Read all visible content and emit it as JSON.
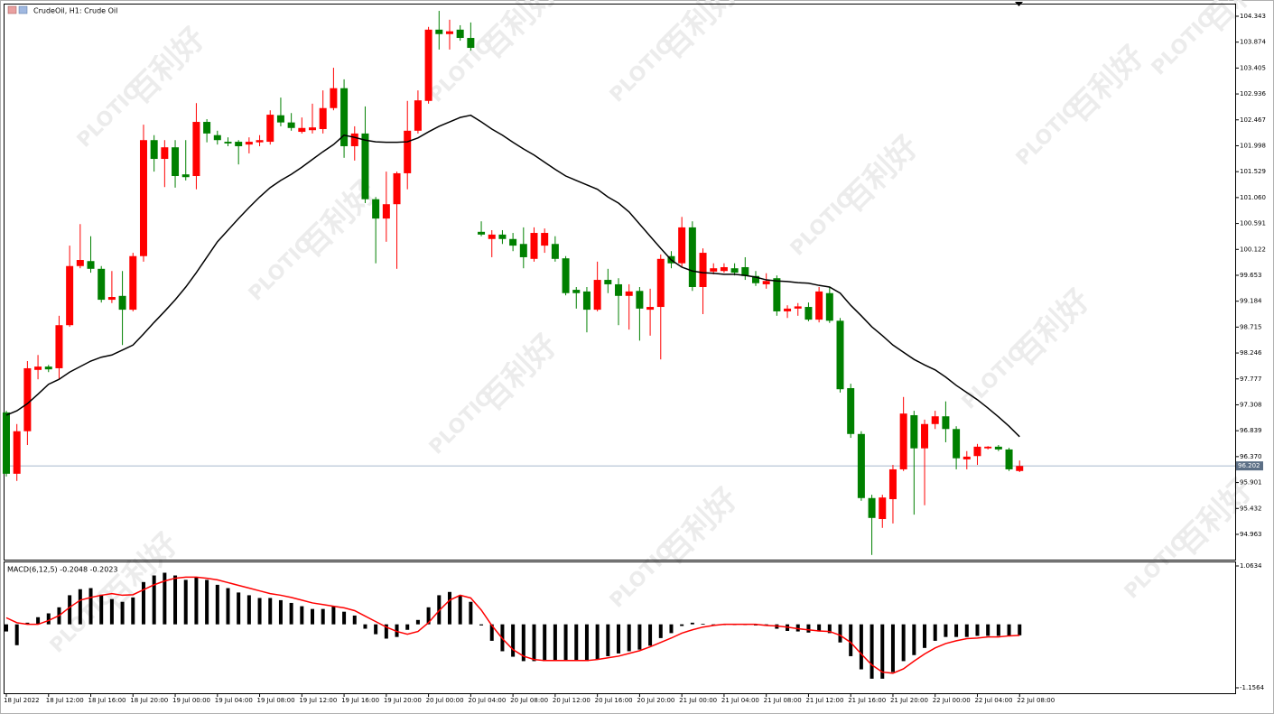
{
  "chart_data": [
    {
      "type": "candlestick",
      "title": "CrudeOil, H1: Crude Oil",
      "watermark": [
        "百利好",
        "PLOTIO"
      ],
      "categories": [
        "18 Jul 2022",
        null,
        null,
        null,
        "18 Jul 12:00",
        null,
        null,
        null,
        "18 Jul 16:00",
        null,
        null,
        null,
        "18 Jul 20:00",
        null,
        null,
        null,
        "19 Jul 00:00",
        null,
        null,
        null,
        "19 Jul 04:00",
        null,
        null,
        null,
        "19 Jul 08:00",
        null,
        null,
        null,
        "19 Jul 12:00",
        null,
        null,
        null,
        "19 Jul 16:00",
        null,
        null,
        null,
        "19 Jul 20:00",
        null,
        null,
        null,
        "20 Jul 00:00",
        null,
        null,
        null,
        "20 Jul 04:00",
        null,
        null,
        null,
        "20 Jul 08:00",
        null,
        null,
        null,
        "20 Jul 12:00",
        null,
        null,
        null,
        "20 Jul 16:00",
        null,
        null,
        null,
        "20 Jul 20:00",
        null,
        null,
        null,
        "21 Jul 00:00",
        null,
        null,
        null,
        "21 Jul 04:00",
        null,
        null,
        null,
        "21 Jul 08:00",
        null,
        null,
        null,
        "21 Jul 12:00",
        null,
        null,
        null,
        "21 Jul 16:00",
        null,
        null,
        null,
        "21 Jul 20:00",
        null,
        null,
        null,
        "22 Jul 00:00",
        null,
        null,
        null,
        "22 Jul 04:00",
        null,
        null,
        null,
        "22 Jul 08:00"
      ],
      "open": [
        97.17,
        96.06,
        96.83,
        97.94,
        98.0,
        97.97,
        98.75,
        99.82,
        99.91,
        99.77,
        99.21,
        99.28,
        99.03,
        100.0,
        102.1,
        101.76,
        101.97,
        101.48,
        101.45,
        102.43,
        102.19,
        102.07,
        102.07,
        102.02,
        102.06,
        102.07,
        102.55,
        102.42,
        102.25,
        102.28,
        102.3,
        102.68,
        103.04,
        101.99,
        102.22,
        101.03,
        100.68,
        100.94,
        101.5,
        102.27,
        102.81,
        104.1,
        104.02,
        104.1,
        103.95,
        100.44,
        100.31,
        100.39,
        100.31,
        100.22,
        99.95,
        100.19,
        100.22,
        99.96,
        99.39,
        99.36,
        99.03,
        99.57,
        99.49,
        99.28,
        99.37,
        99.03,
        99.08,
        100.0,
        99.87,
        100.52,
        99.44,
        99.72,
        99.73,
        99.78,
        99.8,
        99.64,
        99.49,
        99.6,
        99.0,
        99.05,
        99.08,
        98.85,
        99.33,
        98.83,
        97.61,
        96.78,
        95.62,
        95.24,
        95.6,
        96.14,
        97.12,
        96.52,
        96.96,
        97.1,
        96.87,
        96.32,
        96.38,
        96.52,
        96.55,
        96.5,
        96.11
      ],
      "high": [
        97.2,
        96.96,
        98.1,
        98.21,
        98.03,
        98.92,
        100.19,
        100.58,
        100.36,
        99.82,
        99.73,
        99.73,
        100.06,
        102.38,
        102.19,
        102.1,
        102.1,
        102.1,
        102.77,
        102.48,
        102.27,
        102.15,
        102.1,
        102.15,
        102.19,
        102.64,
        102.87,
        102.59,
        102.51,
        102.76,
        103.0,
        103.41,
        103.2,
        102.35,
        102.71,
        101.07,
        101.53,
        101.53,
        102.81,
        103.0,
        104.15,
        104.44,
        104.28,
        104.18,
        104.23,
        100.63,
        100.47,
        100.47,
        100.42,
        100.52,
        100.52,
        100.5,
        100.36,
        100.0,
        99.44,
        99.44,
        99.9,
        99.77,
        99.6,
        99.49,
        99.44,
        99.41,
        100.03,
        100.09,
        100.71,
        100.63,
        100.14,
        99.87,
        99.87,
        99.87,
        99.98,
        99.73,
        99.69,
        99.65,
        99.11,
        99.15,
        99.16,
        99.44,
        99.44,
        98.88,
        97.69,
        96.83,
        95.68,
        95.68,
        96.22,
        97.45,
        97.2,
        97.04,
        97.2,
        97.37,
        96.92,
        96.47,
        96.6,
        96.56,
        96.58,
        96.53,
        96.3
      ],
      "low": [
        96.01,
        95.93,
        96.58,
        97.77,
        97.9,
        97.77,
        98.72,
        99.78,
        99.7,
        99.16,
        99.15,
        98.39,
        99.0,
        99.9,
        101.53,
        101.25,
        101.24,
        101.37,
        101.21,
        102.06,
        102.02,
        101.99,
        101.66,
        101.86,
        101.99,
        102.02,
        102.35,
        102.27,
        102.22,
        102.22,
        102.22,
        102.64,
        101.78,
        101.73,
        100.96,
        99.87,
        100.26,
        99.77,
        101.21,
        102.22,
        102.76,
        103.74,
        103.74,
        103.9,
        103.72,
        100.36,
        99.98,
        100.22,
        100.09,
        99.78,
        99.9,
        100.06,
        99.9,
        99.29,
        99.05,
        98.62,
        99.0,
        99.33,
        98.75,
        98.67,
        98.47,
        98.56,
        98.13,
        99.78,
        99.8,
        99.37,
        98.95,
        99.67,
        99.7,
        99.65,
        99.57,
        99.46,
        99.41,
        98.92,
        98.88,
        98.92,
        98.82,
        98.8,
        98.79,
        97.53,
        96.71,
        95.57,
        94.59,
        95.08,
        95.16,
        96.11,
        95.32,
        95.49,
        96.87,
        96.63,
        96.14,
        96.14,
        96.22,
        96.5,
        96.47,
        96.11,
        96.09
      ],
      "close": [
        96.06,
        96.83,
        97.97,
        98.0,
        97.95,
        98.75,
        99.82,
        99.93,
        99.77,
        99.21,
        99.26,
        99.03,
        100.0,
        102.1,
        101.76,
        101.97,
        101.45,
        101.43,
        102.43,
        102.22,
        102.1,
        102.04,
        101.99,
        102.07,
        102.1,
        102.56,
        102.42,
        102.32,
        102.32,
        102.33,
        102.68,
        103.04,
        101.99,
        102.22,
        101.03,
        100.68,
        100.94,
        101.5,
        102.27,
        102.82,
        104.1,
        104.02,
        104.07,
        103.95,
        103.77,
        100.39,
        100.39,
        100.31,
        100.19,
        99.98,
        100.42,
        100.42,
        99.95,
        99.33,
        99.33,
        99.03,
        99.57,
        99.49,
        99.28,
        99.36,
        99.05,
        99.08,
        99.95,
        99.87,
        100.52,
        99.44,
        100.06,
        99.78,
        99.8,
        99.7,
        99.64,
        99.51,
        99.55,
        99.0,
        99.05,
        99.09,
        98.85,
        99.36,
        98.83,
        97.59,
        96.78,
        95.62,
        95.26,
        95.63,
        96.14,
        97.15,
        96.52,
        96.96,
        97.1,
        96.87,
        96.34,
        96.37,
        96.55,
        96.55,
        96.5,
        96.14,
        96.2
      ],
      "up_color": "#ff0000",
      "down_color": "#008000",
      "ma": {
        "color": "#000000",
        "values": [
          97.12,
          97.2,
          97.33,
          97.5,
          97.68,
          97.77,
          97.9,
          98.0,
          98.1,
          98.17,
          98.21,
          98.3,
          98.39,
          98.59,
          98.8,
          99.0,
          99.21,
          99.44,
          99.7,
          99.98,
          100.26,
          100.47,
          100.68,
          100.88,
          101.07,
          101.24,
          101.37,
          101.48,
          101.61,
          101.75,
          101.89,
          102.02,
          102.19,
          102.15,
          102.1,
          102.07,
          102.06,
          102.06,
          102.07,
          102.14,
          102.25,
          102.35,
          102.43,
          102.51,
          102.55,
          102.43,
          102.3,
          102.19,
          102.06,
          101.94,
          101.83,
          101.7,
          101.57,
          101.45,
          101.37,
          101.29,
          101.21,
          101.07,
          100.96,
          100.8,
          100.58,
          100.36,
          100.14,
          99.93,
          99.8,
          99.73,
          99.7,
          99.69,
          99.67,
          99.67,
          99.65,
          99.62,
          99.57,
          99.55,
          99.54,
          99.52,
          99.51,
          99.47,
          99.44,
          99.33,
          99.11,
          98.92,
          98.72,
          98.56,
          98.39,
          98.26,
          98.13,
          98.03,
          97.94,
          97.81,
          97.66,
          97.53,
          97.4,
          97.25,
          97.09,
          96.92,
          96.73
        ]
      },
      "current_price": 96.202,
      "current_color": "#5c6f86",
      "ylim": [
        94.505,
        104.555
      ],
      "yticks": [
        104.343,
        103.874,
        103.405,
        102.936,
        102.467,
        101.998,
        101.529,
        {
          "value": 101.06,
          "label": "101.060"
        },
        100.591,
        100.122,
        99.653,
        99.184,
        98.715,
        98.246,
        97.777,
        97.308,
        96.839,
        {
          "value": 96.37,
          "label": "96.370"
        },
        95.901,
        95.432,
        94.963
      ]
    },
    {
      "type": "macd",
      "title": "MACD(6,12,5) -0.2048 -0.2023",
      "color": "#000000",
      "values": [
        -0.13,
        -0.38,
        0.03,
        0.13,
        0.2,
        0.31,
        0.53,
        0.64,
        0.66,
        0.54,
        0.46,
        0.41,
        0.49,
        0.77,
        0.89,
        0.94,
        0.89,
        0.81,
        0.86,
        0.81,
        0.72,
        0.66,
        0.58,
        0.53,
        0.48,
        0.48,
        0.44,
        0.39,
        0.33,
        0.28,
        0.28,
        0.33,
        0.23,
        0.16,
        -0.08,
        -0.18,
        -0.26,
        -0.23,
        -0.1,
        0.08,
        0.31,
        0.53,
        0.59,
        0.53,
        0.41,
        -0.02,
        -0.3,
        -0.49,
        -0.59,
        -0.67,
        -0.67,
        -0.67,
        -0.67,
        -0.67,
        -0.67,
        -0.67,
        -0.64,
        -0.58,
        -0.53,
        -0.49,
        -0.46,
        -0.39,
        -0.25,
        -0.16,
        -0.03,
        0.03,
        0.01,
        -0.01,
        -0.01,
        -0.01,
        -0.01,
        -0.02,
        -0.03,
        -0.08,
        -0.12,
        -0.13,
        -0.15,
        -0.13,
        -0.16,
        -0.33,
        -0.58,
        -0.82,
        -0.99,
        -0.99,
        -0.87,
        -0.67,
        -0.56,
        -0.43,
        -0.3,
        -0.23,
        -0.23,
        -0.23,
        -0.21,
        -0.21,
        -0.21,
        -0.21,
        -0.2
      ],
      "signal": {
        "color": "#ff0000",
        "values": [
          0.12,
          0.03,
          0,
          0,
          0.07,
          0.16,
          0.31,
          0.44,
          0.49,
          0.53,
          0.56,
          0.53,
          0.54,
          0.63,
          0.72,
          0.79,
          0.84,
          0.86,
          0.86,
          0.84,
          0.81,
          0.76,
          0.71,
          0.66,
          0.61,
          0.56,
          0.53,
          0.49,
          0.44,
          0.39,
          0.36,
          0.33,
          0.3,
          0.25,
          0.15,
          0.05,
          -0.05,
          -0.13,
          -0.18,
          -0.13,
          0.03,
          0.25,
          0.44,
          0.53,
          0.48,
          0.26,
          -0.02,
          -0.26,
          -0.46,
          -0.58,
          -0.64,
          -0.66,
          -0.66,
          -0.66,
          -0.66,
          -0.66,
          -0.64,
          -0.61,
          -0.58,
          -0.53,
          -0.48,
          -0.41,
          -0.33,
          -0.25,
          -0.16,
          -0.1,
          -0.05,
          -0.02,
          0,
          0,
          0,
          0,
          -0.02,
          -0.03,
          -0.05,
          -0.08,
          -0.1,
          -0.12,
          -0.13,
          -0.2,
          -0.33,
          -0.54,
          -0.74,
          -0.87,
          -0.89,
          -0.81,
          -0.67,
          -0.54,
          -0.43,
          -0.35,
          -0.3,
          -0.26,
          -0.25,
          -0.23,
          -0.23,
          -0.21,
          -0.2
        ]
      },
      "ylim": [
        -1.255,
        1.129
      ],
      "yticks": [
        1.0634,
        -1.1564
      ]
    }
  ]
}
